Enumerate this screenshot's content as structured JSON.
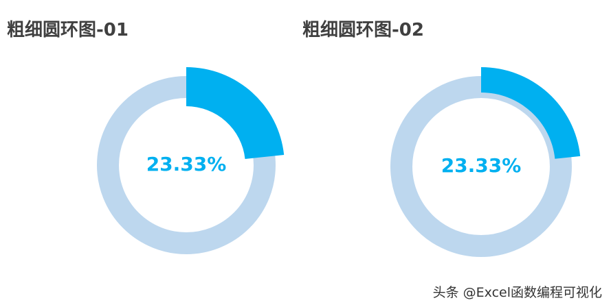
{
  "chart_data": [
    {
      "type": "donut",
      "title": "粗细圆环图-01",
      "values": [
        23.33
      ],
      "value_labels": [
        "23.33%"
      ],
      "color": "#00b0f0",
      "track_color": "#bdd7ee"
    },
    {
      "type": "donut",
      "title": "粗细圆环图-02",
      "values": [
        23.33
      ],
      "value_labels": [
        "23.33%"
      ],
      "color": "#00b0f0",
      "track_color": "#bdd7ee"
    }
  ],
  "watermark": "头条 @Excel函数编程可视化"
}
